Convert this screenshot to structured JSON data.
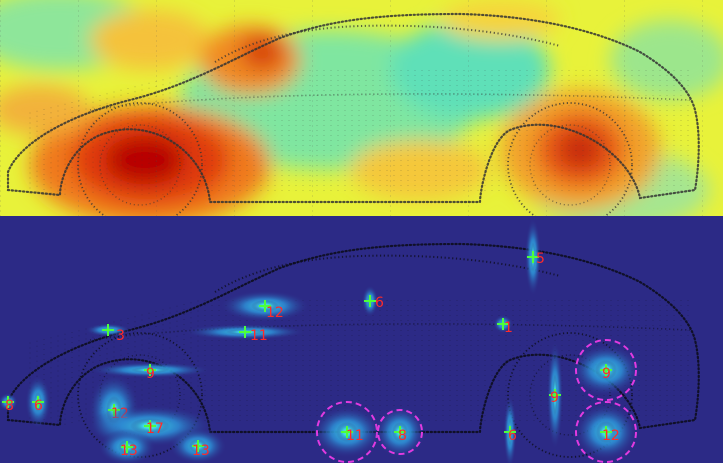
{
  "colors": {
    "heat_low": "#4fe3b0",
    "heat_mid": "#f7f33a",
    "heat_high": "#b80000",
    "bg_bottom": "#2c2a86",
    "label": "#ff2a2a",
    "cross": "#4dff3a",
    "ring": "#e13ae0"
  },
  "sources": [
    {
      "label": "5",
      "ring": false
    },
    {
      "label": "6",
      "ring": false
    },
    {
      "label": "12",
      "ring": false
    },
    {
      "label": "1",
      "ring": false
    },
    {
      "label": "11",
      "ring": false
    },
    {
      "label": "3",
      "ring": false
    },
    {
      "label": "9",
      "ring": false
    },
    {
      "label": "9",
      "ring": true
    },
    {
      "label": "8",
      "ring": false
    },
    {
      "label": "6",
      "ring": false
    },
    {
      "label": "12",
      "ring": false
    },
    {
      "label": "17",
      "ring": false
    },
    {
      "label": "13",
      "ring": false
    },
    {
      "label": "13",
      "ring": false
    },
    {
      "label": "11",
      "ring": true
    },
    {
      "label": "8",
      "ring": true
    },
    {
      "label": "6",
      "ring": false
    },
    {
      "label": "9",
      "ring": false
    },
    {
      "label": "12",
      "ring": true
    }
  ]
}
